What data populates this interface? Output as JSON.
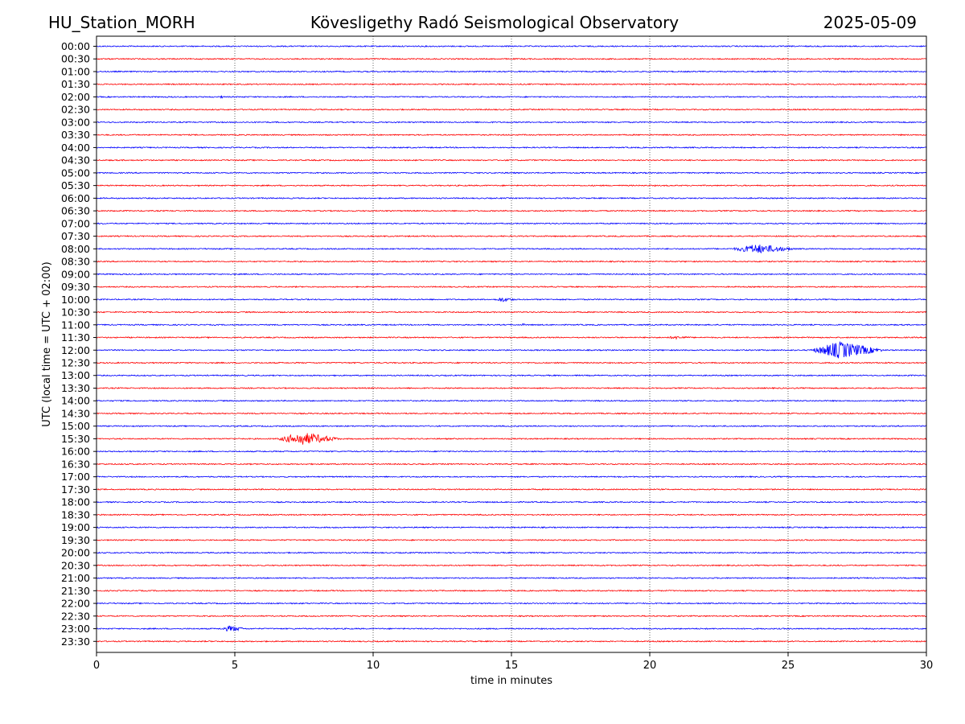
{
  "header": {
    "station": "HU_Station_MORH",
    "observatory": "Kövesligethy Radó Seismological Observatory",
    "date": "2025-05-09"
  },
  "chart_data": {
    "type": "line",
    "title": "Kövesligethy Radó Seismological Observatory",
    "xlabel": "time in minutes",
    "ylabel": "UTC (local time = UTC + 02:00)",
    "xlim": [
      0,
      30
    ],
    "x_ticks": [
      "0",
      "5",
      "10",
      "15",
      "20",
      "25",
      "30"
    ],
    "x_grid_minutes": [
      5,
      10,
      15,
      20,
      25
    ],
    "row_labels": [
      "00:00",
      "00:30",
      "01:00",
      "01:30",
      "02:00",
      "02:30",
      "03:00",
      "03:30",
      "04:00",
      "04:30",
      "05:00",
      "05:30",
      "06:00",
      "06:30",
      "07:00",
      "07:30",
      "08:00",
      "08:30",
      "09:00",
      "09:30",
      "10:00",
      "10:30",
      "11:00",
      "11:30",
      "12:00",
      "12:30",
      "13:00",
      "13:30",
      "14:00",
      "14:30",
      "15:00",
      "15:30",
      "16:00",
      "16:30",
      "17:00",
      "17:30",
      "18:00",
      "18:30",
      "19:00",
      "19:30",
      "20:00",
      "20:30",
      "21:00",
      "21:30",
      "22:00",
      "22:30",
      "23:00",
      "23:30"
    ],
    "trace_colors": [
      "#0000ff",
      "#ff0000"
    ],
    "events": [
      {
        "row": "02:00",
        "start_min": 4.4,
        "end_min": 4.7,
        "amplitude": 1.5
      },
      {
        "row": "08:00",
        "start_min": 22.8,
        "end_min": 25.5,
        "amplitude": 6
      },
      {
        "row": "10:00",
        "start_min": 14.3,
        "end_min": 15.3,
        "amplitude": 3
      },
      {
        "row": "11:00",
        "start_min": 15.3,
        "end_min": 15.6,
        "amplitude": 1.5
      },
      {
        "row": "11:30",
        "start_min": 20.4,
        "end_min": 21.8,
        "amplitude": 2
      },
      {
        "row": "12:00",
        "start_min": 25.7,
        "end_min": 28.6,
        "amplitude": 11
      },
      {
        "row": "15:30",
        "start_min": 6.4,
        "end_min": 9.0,
        "amplitude": 8
      },
      {
        "row": "17:00",
        "start_min": 18.8,
        "end_min": 19.0,
        "amplitude": 1.5
      },
      {
        "row": "23:00",
        "start_min": 4.4,
        "end_min": 5.5,
        "amplitude": 4
      }
    ]
  }
}
